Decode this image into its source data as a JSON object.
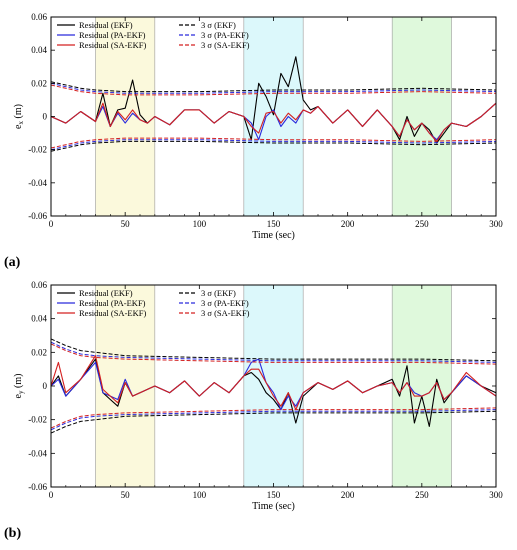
{
  "figure": {
    "panel_labels": [
      "(a)",
      "(b)"
    ]
  },
  "chart_data": [
    {
      "type": "line",
      "panel": "(a)",
      "xlabel": "Time (sec)",
      "ylabel": "e_x (m)",
      "xlim": [
        0,
        300
      ],
      "ylim": [
        -0.06,
        0.06
      ],
      "xticks": [
        0,
        50,
        100,
        150,
        200,
        250,
        300
      ],
      "yticks": [
        -0.06,
        -0.04,
        -0.02,
        0,
        0.02,
        0.04,
        0.06
      ],
      "ytick_labels": [
        "-0.06",
        "-0.04",
        "-0.02",
        "0",
        "0.02",
        "0.04",
        "0.06"
      ],
      "grid": false,
      "legend_position": "top-left",
      "shaded_regions": [
        {
          "x": [
            30,
            70
          ],
          "color": "#fbf9dc"
        },
        {
          "x": [
            130,
            170
          ],
          "color": "#dcf8fb"
        },
        {
          "x": [
            230,
            270
          ],
          "color": "#dff9dc"
        }
      ],
      "series": [
        {
          "name": "Residual (EKF)",
          "color": "#000000",
          "style": "solid",
          "x": [
            0,
            10,
            20,
            30,
            35,
            40,
            45,
            50,
            55,
            60,
            65,
            70,
            80,
            90,
            100,
            110,
            120,
            130,
            135,
            140,
            145,
            150,
            155,
            160,
            165,
            170,
            175,
            180,
            190,
            200,
            210,
            220,
            230,
            235,
            240,
            245,
            250,
            255,
            260,
            265,
            270,
            280,
            290,
            300
          ],
          "y": [
            0,
            -0.004,
            0.003,
            -0.003,
            0.014,
            -0.006,
            0.004,
            0.005,
            0.022,
            0.001,
            -0.004,
            0,
            -0.005,
            0.004,
            0.004,
            -0.004,
            0.003,
            0,
            -0.014,
            0.02,
            0.012,
            0.001,
            0.026,
            0.018,
            0.036,
            0.01,
            0.004,
            0.006,
            -0.004,
            0.004,
            -0.006,
            0.004,
            -0.006,
            -0.014,
            0,
            -0.012,
            -0.004,
            -0.008,
            -0.016,
            -0.01,
            -0.004,
            -0.006,
            0,
            0.008
          ]
        },
        {
          "name": "Residual (PA-EKF)",
          "color": "#2b2bdc",
          "style": "solid",
          "x": [
            0,
            10,
            20,
            30,
            35,
            40,
            45,
            50,
            55,
            60,
            65,
            70,
            80,
            90,
            100,
            110,
            120,
            130,
            135,
            140,
            145,
            150,
            155,
            160,
            165,
            170,
            175,
            180,
            190,
            200,
            210,
            220,
            230,
            235,
            240,
            245,
            250,
            255,
            260,
            265,
            270,
            280,
            290,
            300
          ],
          "y": [
            0,
            -0.004,
            0.003,
            -0.003,
            0.006,
            -0.006,
            0.002,
            -0.004,
            0.002,
            -0.002,
            -0.004,
            0,
            -0.005,
            0.004,
            0.004,
            -0.004,
            0.003,
            0,
            -0.004,
            -0.014,
            0,
            0.004,
            -0.006,
            0,
            -0.004,
            0.004,
            0.002,
            0.006,
            -0.004,
            0.004,
            -0.006,
            0.004,
            -0.006,
            -0.012,
            -0.002,
            -0.008,
            -0.004,
            -0.01,
            -0.014,
            -0.008,
            -0.004,
            -0.006,
            0,
            0.008
          ]
        },
        {
          "name": "Residual (SA-EKF)",
          "color": "#d42020",
          "style": "solid",
          "x": [
            0,
            10,
            20,
            30,
            35,
            40,
            45,
            50,
            55,
            60,
            65,
            70,
            80,
            90,
            100,
            110,
            120,
            130,
            135,
            140,
            145,
            150,
            155,
            160,
            165,
            170,
            175,
            180,
            190,
            200,
            210,
            220,
            230,
            235,
            240,
            245,
            250,
            255,
            260,
            265,
            270,
            280,
            290,
            300
          ],
          "y": [
            0,
            -0.004,
            0.003,
            -0.003,
            0.008,
            -0.006,
            0.003,
            -0.002,
            0.004,
            -0.002,
            -0.004,
            0,
            -0.005,
            0.004,
            0.004,
            -0.004,
            0.003,
            0,
            -0.006,
            -0.01,
            0.002,
            0.003,
            -0.004,
            0.002,
            -0.002,
            0.004,
            0.002,
            0.006,
            -0.004,
            0.004,
            -0.006,
            0.004,
            -0.006,
            -0.012,
            -0.002,
            -0.008,
            -0.004,
            -0.01,
            -0.015,
            -0.008,
            -0.004,
            -0.006,
            0,
            0.008
          ]
        },
        {
          "name": "3 σ (EKF)",
          "color": "#000000",
          "style": "dashed",
          "paired": true,
          "x": [
            0,
            10,
            20,
            30,
            50,
            100,
            150,
            200,
            250,
            300
          ],
          "y": [
            0.021,
            0.019,
            0.017,
            0.016,
            0.015,
            0.015,
            0.016,
            0.016,
            0.017,
            0.016
          ]
        },
        {
          "name": "3 σ (PA-EKF)",
          "color": "#2b2bdc",
          "style": "dashed",
          "paired": true,
          "x": [
            0,
            10,
            20,
            30,
            50,
            100,
            150,
            200,
            250,
            300
          ],
          "y": [
            0.02,
            0.018,
            0.016,
            0.015,
            0.014,
            0.014,
            0.015,
            0.015,
            0.016,
            0.015
          ]
        },
        {
          "name": "3 σ (SA-EKF)",
          "color": "#d42020",
          "style": "dashed",
          "paired": true,
          "x": [
            0,
            10,
            20,
            30,
            50,
            100,
            150,
            200,
            250,
            300
          ],
          "y": [
            0.019,
            0.017,
            0.015,
            0.014,
            0.013,
            0.013,
            0.014,
            0.014,
            0.015,
            0.014
          ]
        }
      ]
    },
    {
      "type": "line",
      "panel": "(b)",
      "xlabel": "Time (sec)",
      "ylabel": "e_y (m)",
      "xlim": [
        0,
        300
      ],
      "ylim": [
        -0.06,
        0.06
      ],
      "xticks": [
        0,
        50,
        100,
        150,
        200,
        250,
        300
      ],
      "yticks": [
        -0.06,
        -0.04,
        -0.02,
        0,
        0.02,
        0.04,
        0.06
      ],
      "ytick_labels": [
        "-0.06",
        "-0.04",
        "-0.02",
        "0",
        "0.02",
        "0.04",
        "0.06"
      ],
      "grid": false,
      "legend_position": "top-left",
      "shaded_regions": [
        {
          "x": [
            30,
            70
          ],
          "color": "#fbf9dc"
        },
        {
          "x": [
            130,
            170
          ],
          "color": "#dcf8fb"
        },
        {
          "x": [
            230,
            270
          ],
          "color": "#dff9dc"
        }
      ],
      "series": [
        {
          "name": "Residual (EKF)",
          "color": "#000000",
          "style": "solid",
          "x": [
            0,
            5,
            10,
            20,
            30,
            35,
            40,
            45,
            50,
            55,
            60,
            65,
            70,
            80,
            90,
            100,
            110,
            120,
            130,
            135,
            140,
            145,
            150,
            155,
            160,
            165,
            170,
            180,
            190,
            200,
            210,
            220,
            230,
            235,
            240,
            245,
            250,
            255,
            260,
            265,
            270,
            280,
            290,
            300
          ],
          "y": [
            0,
            0.006,
            -0.006,
            0.004,
            0.016,
            -0.004,
            -0.008,
            -0.012,
            0.002,
            -0.006,
            -0.004,
            -0.002,
            0,
            -0.004,
            0.003,
            -0.006,
            0.002,
            -0.004,
            0.006,
            0.008,
            0.004,
            -0.004,
            -0.008,
            -0.014,
            -0.004,
            -0.022,
            -0.006,
            0.002,
            -0.002,
            0.003,
            -0.004,
            0,
            0.004,
            -0.006,
            0.012,
            -0.022,
            -0.006,
            -0.024,
            0.004,
            -0.01,
            -0.004,
            0.006,
            0,
            -0.004
          ]
        },
        {
          "name": "Residual (PA-EKF)",
          "color": "#2b2bdc",
          "style": "solid",
          "x": [
            0,
            5,
            10,
            20,
            30,
            35,
            40,
            45,
            50,
            55,
            60,
            65,
            70,
            80,
            90,
            100,
            110,
            120,
            130,
            135,
            140,
            145,
            150,
            155,
            160,
            165,
            170,
            180,
            190,
            200,
            210,
            220,
            230,
            235,
            240,
            245,
            250,
            255,
            260,
            265,
            270,
            280,
            290,
            300
          ],
          "y": [
            0,
            0.004,
            -0.006,
            0.004,
            0.014,
            -0.004,
            -0.006,
            -0.008,
            0.004,
            -0.006,
            -0.004,
            -0.002,
            0,
            -0.004,
            0.003,
            -0.006,
            0.002,
            -0.004,
            0.006,
            0.014,
            0.016,
            0.002,
            -0.004,
            -0.014,
            -0.006,
            -0.012,
            -0.004,
            0.002,
            -0.002,
            0.003,
            -0.004,
            0,
            0.002,
            -0.004,
            0.002,
            -0.004,
            -0.006,
            -0.004,
            0.002,
            -0.008,
            -0.004,
            0.006,
            0,
            -0.006
          ]
        },
        {
          "name": "Residual (SA-EKF)",
          "color": "#d42020",
          "style": "solid",
          "x": [
            0,
            5,
            10,
            20,
            30,
            35,
            40,
            45,
            50,
            55,
            60,
            65,
            70,
            80,
            90,
            100,
            110,
            120,
            130,
            135,
            140,
            145,
            150,
            155,
            160,
            165,
            170,
            180,
            190,
            200,
            210,
            220,
            230,
            235,
            240,
            245,
            250,
            255,
            260,
            265,
            270,
            280,
            290,
            300
          ],
          "y": [
            0,
            0.014,
            -0.004,
            0.004,
            0.018,
            -0.002,
            -0.006,
            -0.01,
            0.002,
            -0.006,
            -0.004,
            -0.002,
            0,
            -0.004,
            0.003,
            -0.006,
            0.002,
            -0.004,
            0.006,
            0.01,
            0.01,
            0.002,
            -0.006,
            -0.012,
            -0.004,
            -0.014,
            -0.004,
            0.002,
            -0.002,
            0.003,
            -0.004,
            0,
            0.002,
            -0.004,
            0.002,
            -0.006,
            -0.006,
            -0.004,
            0.002,
            -0.008,
            -0.004,
            0.008,
            0,
            -0.006
          ]
        },
        {
          "name": "3 σ (EKF)",
          "color": "#000000",
          "style": "dashed",
          "paired": true,
          "x": [
            0,
            10,
            20,
            30,
            50,
            100,
            150,
            200,
            250,
            300
          ],
          "y": [
            0.028,
            0.024,
            0.021,
            0.02,
            0.018,
            0.017,
            0.016,
            0.016,
            0.016,
            0.015
          ]
        },
        {
          "name": "3 σ (PA-EKF)",
          "color": "#2b2bdc",
          "style": "dashed",
          "paired": true,
          "x": [
            0,
            10,
            20,
            30,
            50,
            100,
            150,
            200,
            250,
            300
          ],
          "y": [
            0.026,
            0.022,
            0.019,
            0.018,
            0.017,
            0.016,
            0.015,
            0.015,
            0.015,
            0.014
          ]
        },
        {
          "name": "3 σ (SA-EKF)",
          "color": "#d42020",
          "style": "dashed",
          "paired": true,
          "x": [
            0,
            10,
            20,
            30,
            50,
            100,
            150,
            200,
            250,
            300
          ],
          "y": [
            0.025,
            0.021,
            0.018,
            0.017,
            0.016,
            0.015,
            0.014,
            0.014,
            0.014,
            0.013
          ]
        }
      ]
    }
  ]
}
